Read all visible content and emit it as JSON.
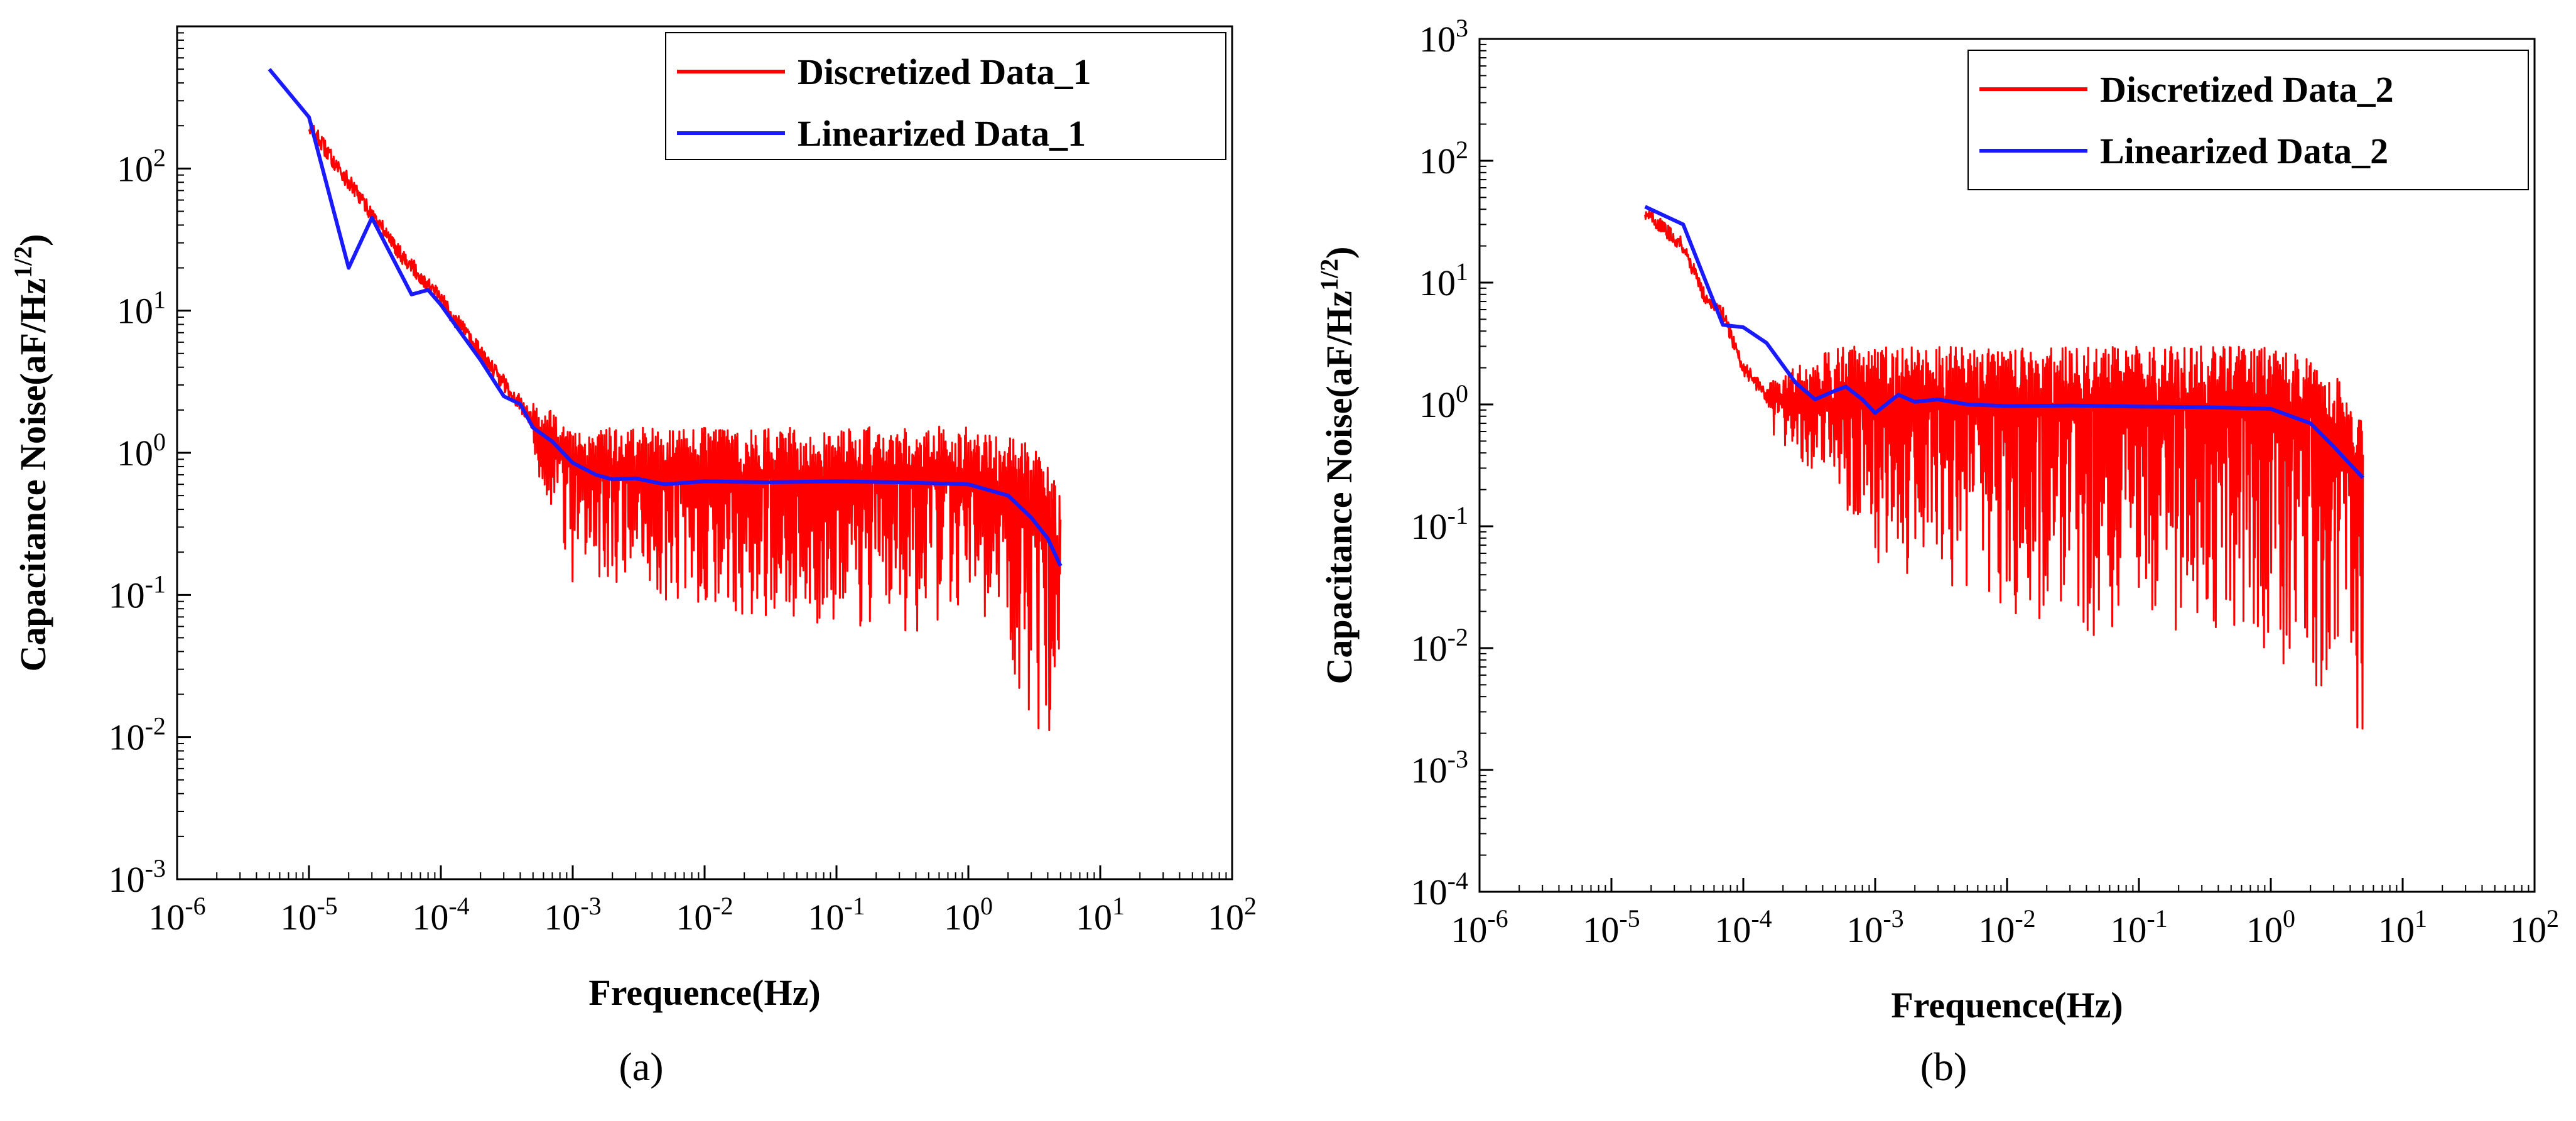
{
  "figure": {
    "panel_labels": [
      "(a)",
      "(b)"
    ]
  },
  "chart_data": [
    {
      "type": "line",
      "panel": "(a)",
      "xlabel": "Frequence(Hz)",
      "ylabel": "Capacitance Noise(aF/Hz^1/2)",
      "x_scale": "log",
      "y_scale": "log",
      "xlim": [
        1e-06,
        100
      ],
      "ylim": [
        0.001,
        1000
      ],
      "x_ticks": [
        1e-06,
        1e-05,
        0.0001,
        0.001,
        0.01,
        0.1,
        1,
        10,
        100
      ],
      "y_ticks": [
        0.001,
        0.01,
        0.1,
        1,
        10,
        100
      ],
      "legend_position": "top-right",
      "grid": false,
      "series": [
        {
          "name": "Discretized Data_1",
          "color": "#ff0000",
          "kind": "noisy-band",
          "trend": [
            [
              1e-05,
              200
            ],
            [
              2e-05,
              80
            ],
            [
              5e-05,
              25
            ],
            [
              0.0001,
              12
            ],
            [
              0.0002,
              5
            ],
            [
              0.0004,
              2.2
            ],
            [
              0.0007,
              1.1
            ],
            [
              0.001,
              0.8
            ],
            [
              0.003,
              0.7
            ],
            [
              0.01,
              0.68
            ],
            [
              0.1,
              0.66
            ],
            [
              1,
              0.64
            ],
            [
              2,
              0.55
            ],
            [
              3.5,
              0.35
            ],
            [
              5,
              0.16
            ]
          ],
          "upper": [
            [
              0.0005,
              2.5
            ],
            [
              0.001,
              1.5
            ],
            [
              0.01,
              1.5
            ],
            [
              0.1,
              1.5
            ],
            [
              1,
              1.55
            ],
            [
              2,
              1.4
            ],
            [
              3.5,
              1.0
            ],
            [
              5,
              0.6
            ]
          ],
          "lower": [
            [
              0.0005,
              0.9
            ],
            [
              0.001,
              0.12
            ],
            [
              0.01,
              0.08
            ],
            [
              0.1,
              0.06
            ],
            [
              1,
              0.05
            ],
            [
              2,
              0.03
            ],
            [
              3.5,
              0.01
            ],
            [
              5,
              0.007
            ]
          ]
        },
        {
          "name": "Linearized Data_1",
          "color": "#1a1aff",
          "points": [
            [
              5e-06,
              500
            ],
            [
              1e-05,
              230
            ],
            [
              2e-05,
              20
            ],
            [
              3e-05,
              45
            ],
            [
              6e-05,
              13
            ],
            [
              8e-05,
              14
            ],
            [
              0.0001,
              11
            ],
            [
              0.00015,
              6.5
            ],
            [
              0.0002,
              4.5
            ],
            [
              0.0003,
              2.5
            ],
            [
              0.0004,
              2.2
            ],
            [
              0.0005,
              1.5
            ],
            [
              0.0007,
              1.2
            ],
            [
              0.001,
              0.85
            ],
            [
              0.0015,
              0.7
            ],
            [
              0.002,
              0.65
            ],
            [
              0.003,
              0.66
            ],
            [
              0.005,
              0.6
            ],
            [
              0.01,
              0.63
            ],
            [
              0.03,
              0.62
            ],
            [
              0.1,
              0.63
            ],
            [
              0.3,
              0.62
            ],
            [
              1,
              0.6
            ],
            [
              2,
              0.5
            ],
            [
              3,
              0.35
            ],
            [
              4,
              0.25
            ],
            [
              5,
              0.16
            ]
          ]
        }
      ]
    },
    {
      "type": "line",
      "panel": "(b)",
      "xlabel": "Frequence(Hz)",
      "ylabel": "Capacitance Noise(aF/Hz^1/2)",
      "x_scale": "log",
      "y_scale": "log",
      "xlim": [
        1e-06,
        100
      ],
      "ylim": [
        0.0001,
        1000
      ],
      "x_ticks": [
        1e-06,
        1e-05,
        0.0001,
        0.001,
        0.01,
        0.1,
        1,
        10,
        100
      ],
      "y_ticks": [
        0.0001,
        0.001,
        0.01,
        0.1,
        1,
        10,
        100,
        1000
      ],
      "legend_position": "top-right",
      "grid": false,
      "series": [
        {
          "name": "Discretized Data_2",
          "color": "#ff0000",
          "kind": "noisy-band",
          "trend": [
            [
              1.8e-05,
              38
            ],
            [
              3.5e-05,
              20
            ],
            [
              5e-05,
              8
            ],
            [
              7e-05,
              5.5
            ],
            [
              0.0001,
              2
            ],
            [
              0.00015,
              1.2
            ],
            [
              0.0002,
              1.0
            ],
            [
              0.0005,
              1.0
            ],
            [
              0.001,
              0.95
            ],
            [
              0.01,
              0.95
            ],
            [
              0.1,
              0.95
            ],
            [
              1,
              0.95
            ],
            [
              2,
              0.8
            ],
            [
              3.5,
              0.5
            ],
            [
              5,
              0.25
            ]
          ],
          "upper": [
            [
              0.00015,
              1.5
            ],
            [
              0.0005,
              3.0
            ],
            [
              0.001,
              3.0
            ],
            [
              0.01,
              3.0
            ],
            [
              0.1,
              3.0
            ],
            [
              1,
              3.0
            ],
            [
              2,
              2.5
            ],
            [
              3.5,
              1.5
            ],
            [
              5,
              0.7
            ]
          ],
          "lower": [
            [
              0.00015,
              0.6
            ],
            [
              0.0005,
              0.2
            ],
            [
              0.001,
              0.05
            ],
            [
              0.01,
              0.02
            ],
            [
              0.1,
              0.01
            ],
            [
              1,
              0.008
            ],
            [
              2,
              0.005
            ],
            [
              4,
              0.001
            ],
            [
              5,
              0.002
            ]
          ]
        },
        {
          "name": "Linearized Data_2",
          "color": "#1a1aff",
          "points": [
            [
              1.8e-05,
              42
            ],
            [
              3.5e-05,
              30
            ],
            [
              7e-05,
              4.5
            ],
            [
              0.0001,
              4.3
            ],
            [
              0.00015,
              3.2
            ],
            [
              0.00025,
              1.5
            ],
            [
              0.00035,
              1.1
            ],
            [
              0.0005,
              1.3
            ],
            [
              0.0006,
              1.4
            ],
            [
              0.0008,
              1.1
            ],
            [
              0.001,
              0.85
            ],
            [
              0.0015,
              1.2
            ],
            [
              0.002,
              1.05
            ],
            [
              0.003,
              1.1
            ],
            [
              0.005,
              1.0
            ],
            [
              0.01,
              0.97
            ],
            [
              0.03,
              0.98
            ],
            [
              0.1,
              0.96
            ],
            [
              0.3,
              0.95
            ],
            [
              1,
              0.92
            ],
            [
              2,
              0.7
            ],
            [
              3,
              0.45
            ],
            [
              5,
              0.25
            ]
          ]
        }
      ]
    }
  ]
}
